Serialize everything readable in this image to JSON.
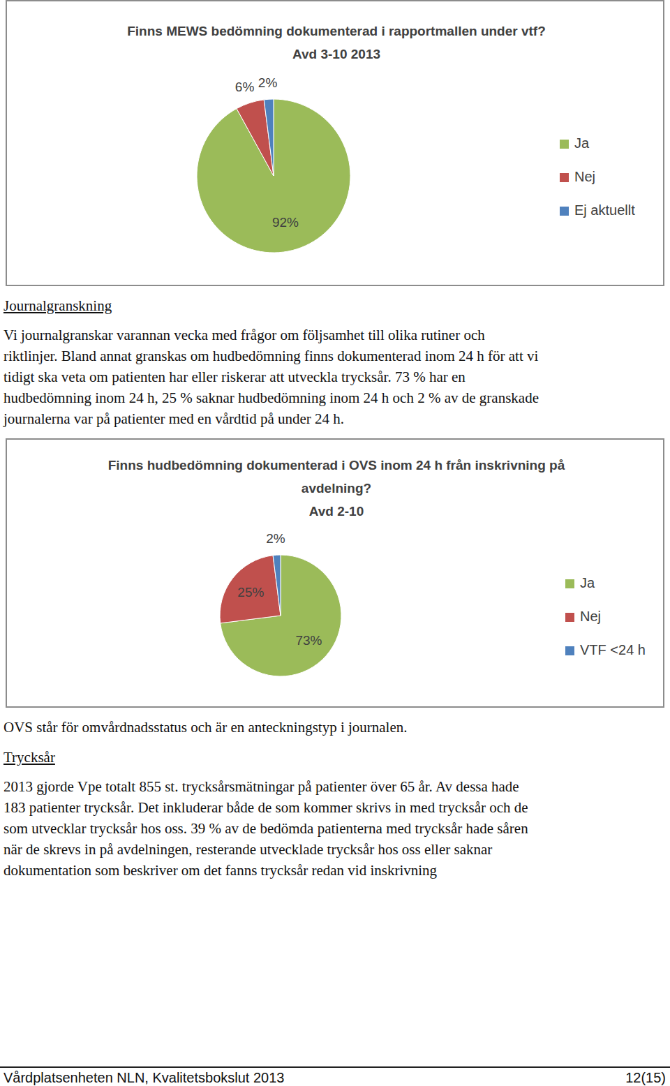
{
  "chart_data": [
    {
      "type": "pie",
      "title": "Finns MEWS bedömning dokumenterad i rapportmallen under vtf?",
      "subtitle": "Avd 3-10 2013",
      "categories": [
        "Ja",
        "Nej",
        "Ej aktuellt"
      ],
      "values": [
        92,
        6,
        2
      ],
      "value_labels": [
        "92%",
        "6%",
        "2%"
      ],
      "colors": [
        "#9bbb59",
        "#c0504d",
        "#4f81bd"
      ],
      "data_labels": true,
      "legend": "right"
    },
    {
      "type": "pie",
      "title": "Finns hudbedömning dokumenterad i OVS inom 24 h från inskrivning på avdelning?",
      "subtitle": "Avd 2-10",
      "categories": [
        "Ja",
        "Nej",
        "VTF <24 h"
      ],
      "values": [
        73,
        25,
        2
      ],
      "value_labels": [
        "73%",
        "25%",
        "2%"
      ],
      "colors": [
        "#9bbb59",
        "#c0504d",
        "#4f81bd"
      ],
      "data_labels": true,
      "legend": "right"
    }
  ],
  "document": {
    "journalgranskning": {
      "heading": "Journalgranskning",
      "lines": [
        "Vi journalgranskar varannan vecka med frågor om följsamhet till olika rutiner och",
        "riktlinjer. Bland annat granskas om hudbedömning finns dokumenterad inom 24 h för att vi",
        "tidigt ska veta om patienten har eller riskerar att utveckla trycksår. 73 % har en",
        "hudbedömning inom 24 h, 25 % saknar hudbedömning inom 24 h och 2 % av de granskade",
        "journalerna var på patienter med en vårdtid på under 24 h."
      ]
    },
    "ovs_note": "OVS står för omvårdnadsstatus och är en anteckningstyp i journalen.",
    "trycksar": {
      "heading": "Trycksår",
      "lines": [
        "2013 gjorde Vpe totalt 855 st. trycksårsmätningar på patienter över 65 år. Av dessa hade",
        "183 patienter trycksår. Det inkluderar både de som kommer skrivs in med trycksår och de",
        "som utvecklar trycksår hos oss. 39 % av de bedömda patienterna med trycksår hade såren",
        "när de skrevs in på avdelningen, resterande utvecklade trycksår hos oss eller saknar",
        "dokumentation som beskriver om det fanns trycksår redan vid inskrivning"
      ]
    },
    "footer": {
      "left": "Vårdplatsenheten NLN, Kvalitetsbokslut 2013",
      "right": "12(15)"
    }
  }
}
